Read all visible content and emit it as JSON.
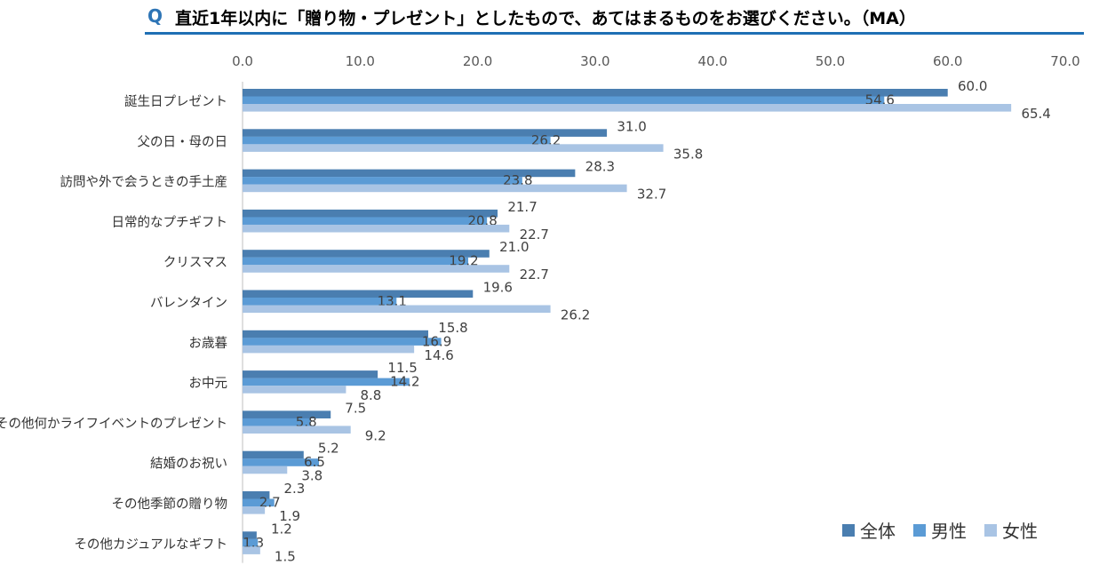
{
  "header": {
    "q_mark": "Q",
    "title": "直近1年以内に「贈り物・プレゼント」としたもので、あてはまるものをお選びください。（MA）"
  },
  "colors": {
    "all": "#4a7eb0",
    "male": "#5b9bd5",
    "female": "#a9c4e4",
    "rule": "#1f6fb4",
    "axis": "#bfbfbf"
  },
  "chart_data": {
    "type": "bar",
    "orientation": "horizontal",
    "title": "直近1年以内に「贈り物・プレゼント」としたもので、あてはまるものをお選びください。（MA）",
    "xlim": [
      0,
      70
    ],
    "x_ticks": [
      "0.0",
      "10.0",
      "20.0",
      "30.0",
      "40.0",
      "50.0",
      "60.0",
      "70.0"
    ],
    "axis_position": "top",
    "legend_position": "bottom-right",
    "categories": [
      "誕生日プレゼント",
      "父の日・母の日",
      "訪問や外で会うときの手土産",
      "日常的なプチギフト",
      "クリスマス",
      "バレンタイン",
      "お歳暮",
      "お中元",
      "その他何かライフイベントのプレゼント",
      "結婚のお祝い",
      "その他季節の贈り物",
      "その他カジュアルなギフト"
    ],
    "series": [
      {
        "name": "全体",
        "values": [
          60.0,
          31.0,
          28.3,
          21.7,
          21.0,
          19.6,
          15.8,
          11.5,
          7.5,
          5.2,
          2.3,
          1.2
        ]
      },
      {
        "name": "男性",
        "values": [
          54.6,
          26.2,
          23.8,
          20.8,
          19.2,
          13.1,
          16.9,
          14.2,
          5.8,
          6.5,
          2.7,
          1.3
        ]
      },
      {
        "name": "女性",
        "values": [
          65.4,
          35.8,
          32.7,
          22.7,
          22.7,
          26.2,
          14.6,
          8.8,
          9.2,
          3.8,
          1.9,
          1.5
        ]
      }
    ]
  }
}
